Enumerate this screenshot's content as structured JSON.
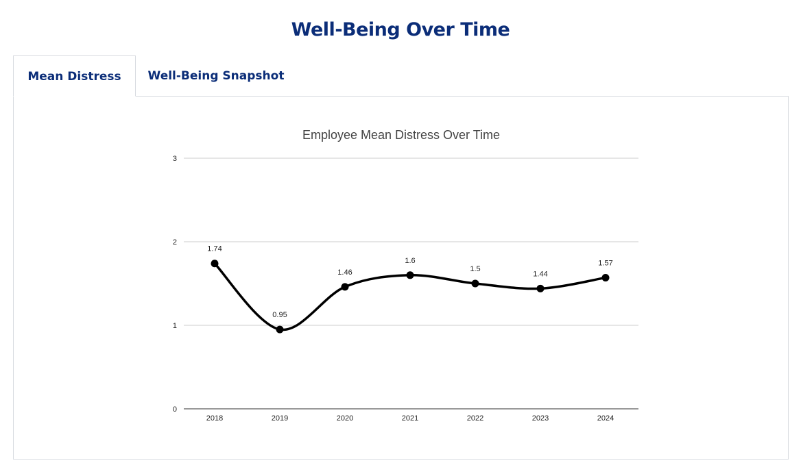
{
  "header": {
    "title": "Well-Being Over Time"
  },
  "tabs": [
    {
      "label": "Mean Distress",
      "active": true
    },
    {
      "label": "Well-Being Snapshot",
      "active": false
    }
  ],
  "chart_data": {
    "type": "line",
    "title": "Employee Mean Distress Over Time",
    "categories": [
      "2018",
      "2019",
      "2020",
      "2021",
      "2022",
      "2023",
      "2024"
    ],
    "values": [
      1.74,
      0.95,
      1.46,
      1.6,
      1.5,
      1.44,
      1.57
    ],
    "data_labels": [
      "1.74",
      "0.95",
      "1.46",
      "1.6",
      "1.5",
      "1.44",
      "1.57"
    ],
    "ylim": [
      0,
      3
    ],
    "yticks": [
      "0",
      "1",
      "2",
      "3"
    ],
    "grid": true,
    "smooth": true,
    "line_color": "#000000"
  }
}
